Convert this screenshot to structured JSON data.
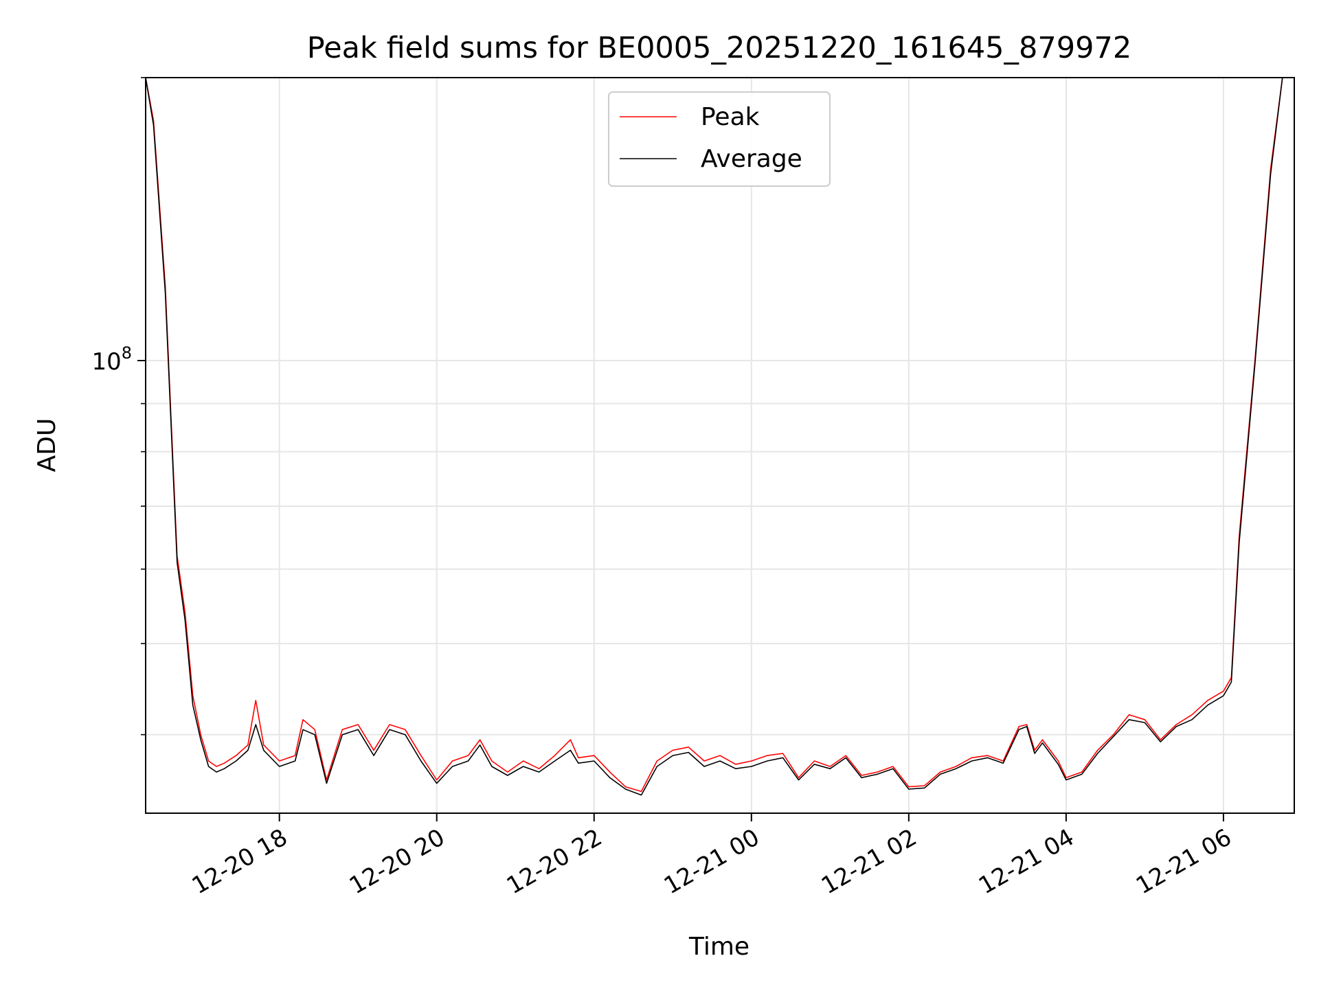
{
  "chart_data": {
    "type": "line",
    "title": "Peak field sums for BE0005_20251220_161645_879972",
    "xlabel": "Time",
    "ylabel": "ADU",
    "yscale": "log",
    "ylim": [
      33000000,
      200000000
    ],
    "xlim_hours": [
      16.3,
      30.9
    ],
    "grid": true,
    "legend_position": "top-center",
    "y_major_ticks": [
      {
        "value": 100000000,
        "base": "10",
        "exp": "8"
      }
    ],
    "y_minor_ticks": [
      40000000,
      50000000,
      60000000,
      70000000,
      80000000,
      90000000,
      200000000
    ],
    "x_ticks": [
      {
        "hour": 18,
        "label": "12-20 18"
      },
      {
        "hour": 20,
        "label": "12-20 20"
      },
      {
        "hour": 22,
        "label": "12-20 22"
      },
      {
        "hour": 24,
        "label": "12-21 00"
      },
      {
        "hour": 26,
        "label": "12-21 02"
      },
      {
        "hour": 28,
        "label": "12-21 04"
      },
      {
        "hour": 30,
        "label": "12-21 06"
      }
    ],
    "x_unit_note": "x values are hours since 2025-12-20 00:00",
    "series": [
      {
        "name": "Peak",
        "color": "#ff0000",
        "x": [
          16.3,
          16.4,
          16.55,
          16.7,
          16.8,
          16.9,
          17.0,
          17.1,
          17.2,
          17.3,
          17.45,
          17.6,
          17.7,
          17.8,
          18.0,
          18.2,
          18.3,
          18.45,
          18.6,
          18.8,
          19.0,
          19.2,
          19.4,
          19.6,
          19.8,
          20.0,
          20.2,
          20.4,
          20.55,
          20.7,
          20.9,
          21.1,
          21.3,
          21.5,
          21.7,
          21.8,
          22.0,
          22.2,
          22.4,
          22.6,
          22.8,
          23.0,
          23.2,
          23.4,
          23.6,
          23.8,
          24.0,
          24.2,
          24.4,
          24.6,
          24.8,
          25.0,
          25.2,
          25.4,
          25.6,
          25.8,
          26.0,
          26.2,
          26.4,
          26.6,
          26.8,
          27.0,
          27.2,
          27.4,
          27.5,
          27.6,
          27.7,
          27.9,
          28.0,
          28.2,
          28.4,
          28.6,
          28.8,
          29.0,
          29.2,
          29.4,
          29.6,
          29.8,
          30.0,
          30.1,
          30.2,
          30.4,
          30.6,
          30.75,
          30.85
        ],
        "values": [
          200000000,
          180000000,
          120000000,
          62000000,
          54000000,
          44000000,
          40000000,
          37500000,
          37000000,
          37300000,
          38000000,
          39000000,
          43500000,
          39000000,
          37500000,
          38000000,
          41500000,
          40500000,
          35800000,
          40500000,
          41000000,
          38500000,
          41000000,
          40500000,
          38000000,
          35800000,
          37500000,
          38000000,
          39500000,
          37500000,
          36500000,
          37500000,
          36800000,
          38000000,
          39500000,
          37800000,
          38000000,
          36500000,
          35200000,
          34800000,
          37500000,
          38500000,
          38800000,
          37500000,
          38000000,
          37200000,
          37500000,
          38000000,
          38200000,
          36000000,
          37500000,
          37000000,
          38000000,
          36200000,
          36500000,
          37000000,
          35200000,
          35300000,
          36500000,
          37000000,
          37800000,
          38000000,
          37500000,
          40800000,
          41000000,
          38500000,
          39500000,
          37500000,
          36000000,
          36500000,
          38500000,
          40000000,
          42000000,
          41500000,
          39500000,
          41000000,
          42000000,
          43500000,
          44500000,
          46000000,
          65000000,
          100000000,
          160000000,
          200000000,
          200000000
        ]
      },
      {
        "name": "Average",
        "color": "#000000",
        "x": [
          16.3,
          16.4,
          16.55,
          16.7,
          16.8,
          16.9,
          17.0,
          17.1,
          17.2,
          17.3,
          17.45,
          17.6,
          17.7,
          17.8,
          18.0,
          18.2,
          18.3,
          18.45,
          18.6,
          18.8,
          19.0,
          19.2,
          19.4,
          19.6,
          19.8,
          20.0,
          20.2,
          20.4,
          20.55,
          20.7,
          20.9,
          21.1,
          21.3,
          21.5,
          21.7,
          21.8,
          22.0,
          22.2,
          22.4,
          22.6,
          22.8,
          23.0,
          23.2,
          23.4,
          23.6,
          23.8,
          24.0,
          24.2,
          24.4,
          24.6,
          24.8,
          25.0,
          25.2,
          25.4,
          25.6,
          25.8,
          26.0,
          26.2,
          26.4,
          26.6,
          26.8,
          27.0,
          27.2,
          27.4,
          27.5,
          27.6,
          27.7,
          27.9,
          28.0,
          28.2,
          28.4,
          28.6,
          28.8,
          29.0,
          29.2,
          29.4,
          29.6,
          29.8,
          30.0,
          30.1,
          30.2,
          30.4,
          30.6,
          30.75,
          30.85
        ],
        "values": [
          200000000,
          178000000,
          118000000,
          61000000,
          53000000,
          43000000,
          39500000,
          37000000,
          36500000,
          36800000,
          37500000,
          38500000,
          41000000,
          38500000,
          37000000,
          37500000,
          40500000,
          40000000,
          35500000,
          40000000,
          40500000,
          38000000,
          40500000,
          40000000,
          37500000,
          35500000,
          37000000,
          37500000,
          39000000,
          37000000,
          36200000,
          37000000,
          36500000,
          37500000,
          38500000,
          37300000,
          37500000,
          36000000,
          35000000,
          34500000,
          37000000,
          38000000,
          38300000,
          37000000,
          37500000,
          36800000,
          37000000,
          37500000,
          37800000,
          35800000,
          37200000,
          36800000,
          37800000,
          36000000,
          36300000,
          36800000,
          35000000,
          35100000,
          36300000,
          36800000,
          37500000,
          37800000,
          37300000,
          40500000,
          40800000,
          38200000,
          39200000,
          37200000,
          35800000,
          36300000,
          38200000,
          39800000,
          41500000,
          41200000,
          39300000,
          40800000,
          41500000,
          43000000,
          44000000,
          45500000,
          64000000,
          99000000,
          158000000,
          200000000,
          200000000
        ]
      }
    ]
  }
}
